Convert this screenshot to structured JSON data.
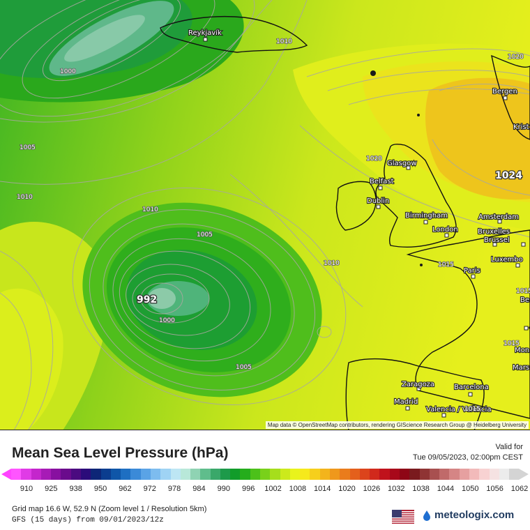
{
  "map": {
    "attribution": "Map data © OpenStreetMap contributors, rendering GIScience Research Group @ Heidelberg University",
    "cities": [
      "Reykjavík",
      "Bergen",
      "Krist",
      "Glasgow",
      "Belfast",
      "Dublin",
      "Birmingham",
      "London",
      "Amsterdam",
      "Bruxelles",
      "Brussel",
      "Luxembo",
      "Paris",
      "Zaragoza",
      "Barcelona",
      "Madrid",
      "Valencia / València",
      "Mars",
      "Mon",
      "Be"
    ],
    "isobar_labels": [
      "1010",
      "1000",
      "1005",
      "1010",
      "1010",
      "1005",
      "1000",
      "1010",
      "1005",
      "1020",
      "1020",
      "1015",
      "1015",
      "1015",
      "1015"
    ],
    "pressure_centers": [
      "992",
      "1024"
    ]
  },
  "legend": {
    "title": "Mean Sea Level Pressure (hPa)",
    "valid_label": "Valid for",
    "valid_time": "Tue 09/05/2023, 02:00pm CEST",
    "ticks": [
      "910",
      "925",
      "938",
      "950",
      "962",
      "972",
      "978",
      "984",
      "990",
      "996",
      "1002",
      "1008",
      "1014",
      "1020",
      "1026",
      "1032",
      "1038",
      "1044",
      "1050",
      "1056",
      "1062"
    ],
    "colors": [
      "#ff55ff",
      "#e03be6",
      "#c426cc",
      "#a71bb6",
      "#8810a0",
      "#6a0b8c",
      "#4b0b80",
      "#2b0c7a",
      "#0d2677",
      "#0b3d8f",
      "#0f56a8",
      "#1e6fc2",
      "#3b8ad8",
      "#5aa3e6",
      "#7dbcef",
      "#9fd3f4",
      "#bde6f4",
      "#b8e8d9",
      "#8fd3b3",
      "#5fbd8c",
      "#3aa86a",
      "#1d9a4a",
      "#119c2a",
      "#25ad1c",
      "#4cc11a",
      "#79d11a",
      "#a6de1c",
      "#ccea1c",
      "#e9f31c",
      "#f6e91c",
      "#f6cf1c",
      "#f3b41c",
      "#ef981c",
      "#ea7c1c",
      "#e4601c",
      "#dc441c",
      "#d1291c",
      "#c0121c",
      "#a8081a",
      "#8e0616",
      "#7a1a1e",
      "#8f3434",
      "#a85050",
      "#c06a6a",
      "#d58585",
      "#e6a0a0",
      "#f2baba",
      "#f8d2d2",
      "#f5e2e2",
      "#ececec",
      "#d4d4d4"
    ]
  },
  "footer": {
    "grid_info": "Grid map 16.6 W, 52.9 N (Zoom level 1 / Resolution 5km)",
    "model_info": "GFS (15 days) from  09/01/2023/12z",
    "logo_text": "meteologix.com",
    "flag_icon": "us-flag-icon"
  }
}
